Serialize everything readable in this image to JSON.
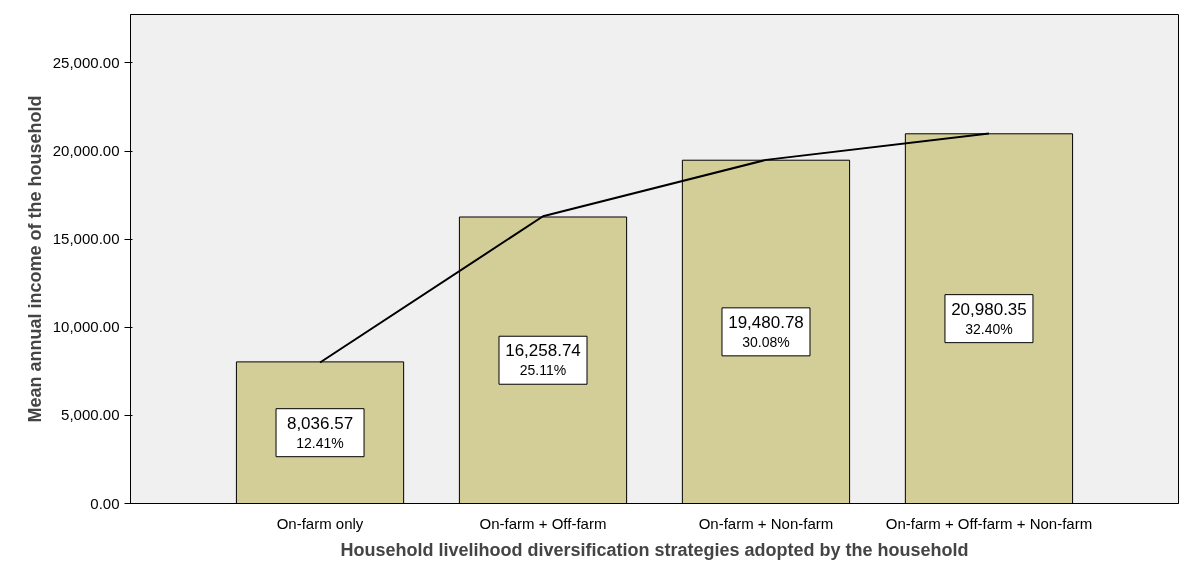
{
  "chart_data": {
    "type": "bar",
    "xlabel": "Household livelihood diversification strategies adopted by the household",
    "ylabel": "Mean annual income of the household",
    "categories": [
      "On-farm only",
      "On-farm + Off-farm",
      "On-farm + Non-farm",
      "On-farm + Off-farm + Non-farm"
    ],
    "series": [
      {
        "color": "#d3ce97",
        "values": [
          8036.57,
          16258.74,
          19480.78,
          20980.35
        ],
        "value_labels": [
          "8,036.57\n12.41%",
          "16,258.74\n25.11%",
          "19,480.78\n30.08%",
          "20,980.35\n32.40%"
        ]
      },
      {
        "type": "line",
        "color": "#000000",
        "values": [
          8000,
          16300,
          19500,
          21000
        ]
      }
    ],
    "ylim": [
      0,
      27750
    ],
    "yticks": [
      {
        "value": 0,
        "label": "0.00"
      },
      {
        "value": 5000,
        "label": "5,000.00"
      },
      {
        "value": 10000,
        "label": "10,000.00"
      },
      {
        "value": 15000,
        "label": "15,000.00"
      },
      {
        "value": 20000,
        "label": "20,000.00"
      },
      {
        "value": 25000,
        "label": "25,000.00"
      }
    ],
    "grid": false,
    "marker": "none",
    "line_style": "solid"
  }
}
